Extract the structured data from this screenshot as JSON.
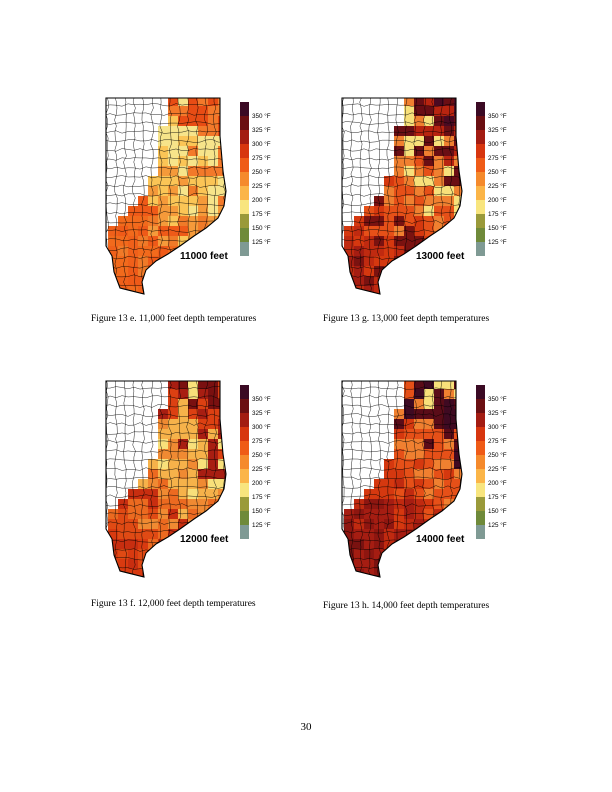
{
  "legend": {
    "labels": [
      "350 °F",
      "325 °F",
      "300 °F",
      "275 °F",
      "250 °F",
      "225 °F",
      "200 °F",
      "175 °F",
      "150 °F",
      "125 °F"
    ],
    "colors": [
      "#3b0a24",
      "#6b0f12",
      "#a31c12",
      "#d7360f",
      "#ef5b17",
      "#f58a2c",
      "#fbb548",
      "#f8e57e",
      "#9a9a3a",
      "#6f8a3a",
      "#7f9a94"
    ]
  },
  "figures": [
    {
      "id": "13e",
      "depth_label": "11000 feet",
      "caption": "Figure 13 e.  11,000 feet depth temperatures",
      "palette": [
        "#f0601a",
        "#f26a1c",
        "#ef5a18",
        "#f07a28",
        "#f59a3a",
        "#fbc556",
        "#f7e48a",
        "#f3792a",
        "#e84c14",
        "#f08030"
      ]
    },
    {
      "id": "13g",
      "depth_label": "13000 feet",
      "caption": "Figure 13 g.  13,000 feet depth temperatures",
      "palette": [
        "#a51d12",
        "#c02a10",
        "#7a1210",
        "#d5380f",
        "#e65018",
        "#f08030",
        "#f8e07a",
        "#6a0e14",
        "#b82410",
        "#4a0a22"
      ]
    },
    {
      "id": "13f",
      "depth_label": "12000 feet",
      "caption": "Figure 13 f.  12,000 feet depth temperatures",
      "palette": [
        "#d93a10",
        "#e04a14",
        "#c82e10",
        "#ec6a20",
        "#f08a32",
        "#f6b24a",
        "#f8e07a",
        "#a81e12",
        "#dc4012",
        "#7a1010"
      ]
    },
    {
      "id": "13h",
      "depth_label": "14000 feet",
      "caption": "Figure 13 h.  14,000 feet depth temperatures",
      "palette": [
        "#7a1210",
        "#8e1610",
        "#a51d12",
        "#c02a10",
        "#d5380f",
        "#e65018",
        "#f08030",
        "#5a0c18",
        "#3f0a22",
        "#f8e07a"
      ]
    }
  ],
  "page_number": "30"
}
